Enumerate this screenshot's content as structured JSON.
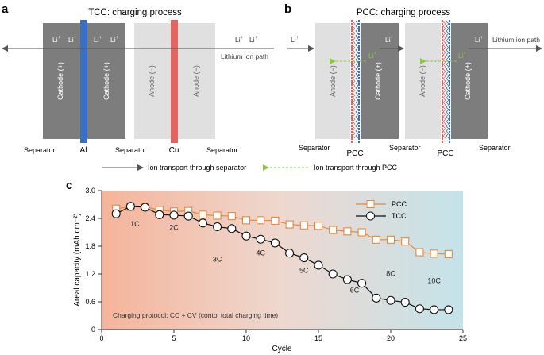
{
  "panel_a": {
    "letter": "a",
    "title": "TCC: charging process",
    "cathode1": "Cathode (+)",
    "cathode2": "Cathode (+)",
    "anode1": "Anode (−)",
    "anode2": "Anode (−)",
    "li_ions": [
      "Li",
      "Li",
      "Li",
      "Li",
      "Li",
      "Li"
    ],
    "separators": [
      "Separator",
      "Separator",
      "Separator"
    ],
    "al": "Al",
    "cu": "Cu",
    "path_label": "Lithium ion path"
  },
  "panel_b": {
    "letter": "b",
    "title": "PCC: charging process",
    "anode1": "Anode (−)",
    "cathode1": "Cathode (+)",
    "anode2": "Anode (−)",
    "cathode2": "Cathode (+)",
    "li_ions": [
      "Li",
      "Li",
      "Li",
      "Li",
      "Li"
    ],
    "separators": [
      "Separator",
      "Separator",
      "Separator"
    ],
    "pcc": [
      "PCC",
      "PCC"
    ],
    "path_label": "Lithium ion path"
  },
  "legend_ab": {
    "separator_transport": "Ion transport through separator",
    "pcc_transport": "Ion transport through PCC"
  },
  "chart_data": {
    "type": "line",
    "panel_letter": "c",
    "xlabel": "Cycle",
    "ylabel": "Areal capacity (mAh cm⁻²)",
    "xlim": [
      0,
      25
    ],
    "ylim": [
      0,
      3.0
    ],
    "xticks": [
      0,
      5,
      10,
      15,
      20,
      25
    ],
    "yticks": [
      0,
      0.6,
      1.2,
      1.8,
      2.4,
      3.0
    ],
    "ytick_labels": [
      "0",
      "0.6",
      "1.2",
      "1.8",
      "2.4",
      "3.0"
    ],
    "legend": "top-right",
    "annotation": "Charging protocol: CC + CV (contol total charging time)",
    "rate_labels": [
      "1C",
      "2C",
      "3C",
      "4C",
      "5C",
      "6C",
      "8C",
      "10C"
    ],
    "rate_label_pos": [
      [
        2.3,
        2.23
      ],
      [
        5,
        2.15
      ],
      [
        8,
        1.47
      ],
      [
        11,
        1.6
      ],
      [
        14,
        1.23
      ],
      [
        17.5,
        0.8
      ],
      [
        20,
        1.16
      ],
      [
        23,
        1.0
      ]
    ],
    "x": [
      1,
      2,
      3,
      4,
      5,
      6,
      7,
      8,
      9,
      10,
      11,
      12,
      13,
      14,
      15,
      16,
      17,
      18,
      19,
      20,
      21,
      22,
      23,
      24
    ],
    "series": [
      {
        "name": "PCC",
        "color": "#e8873a",
        "marker": "square",
        "values": [
          2.61,
          2.65,
          2.65,
          2.58,
          2.55,
          2.56,
          2.48,
          2.46,
          2.45,
          2.36,
          2.36,
          2.35,
          2.27,
          2.25,
          2.24,
          2.15,
          2.12,
          2.1,
          1.94,
          1.94,
          1.9,
          1.67,
          1.64,
          1.63
        ]
      },
      {
        "name": "TCC",
        "color": "#111111",
        "marker": "circle",
        "values": [
          2.5,
          2.66,
          2.64,
          2.48,
          2.47,
          2.45,
          2.3,
          2.22,
          2.18,
          2.02,
          1.95,
          1.87,
          1.65,
          1.55,
          1.39,
          1.2,
          1.08,
          1.0,
          0.68,
          0.63,
          0.59,
          0.45,
          0.43,
          0.43
        ]
      }
    ],
    "gradient": [
      "#f5b49a",
      "#eed8cf",
      "#c4e3ea"
    ]
  }
}
